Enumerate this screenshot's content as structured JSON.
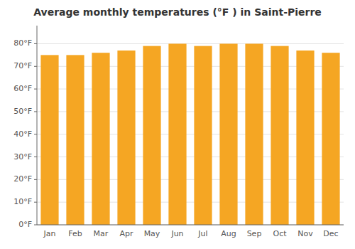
{
  "chart_data": {
    "type": "bar",
    "title": "Average monthly temperatures (°F ) in Saint-Pierre",
    "categories": [
      "Jan",
      "Feb",
      "Mar",
      "Apr",
      "May",
      "Jun",
      "Jul",
      "Aug",
      "Sep",
      "Oct",
      "Nov",
      "Dec"
    ],
    "values": [
      75,
      75,
      76,
      77,
      79,
      80,
      79,
      80,
      80,
      79,
      77,
      76
    ],
    "color": "#F5A623",
    "ylim": [
      0,
      88
    ],
    "yticks": [
      {
        "value": 0,
        "label": "0°F"
      },
      {
        "value": 10,
        "label": "10°F"
      },
      {
        "value": 20,
        "label": "20°F"
      },
      {
        "value": 30,
        "label": "30°F"
      },
      {
        "value": 40,
        "label": "40°F"
      },
      {
        "value": 50,
        "label": "50°F"
      },
      {
        "value": 60,
        "label": "60°F"
      },
      {
        "value": 70,
        "label": "70°F"
      },
      {
        "value": 80,
        "label": "80°F"
      }
    ],
    "grid": true
  }
}
